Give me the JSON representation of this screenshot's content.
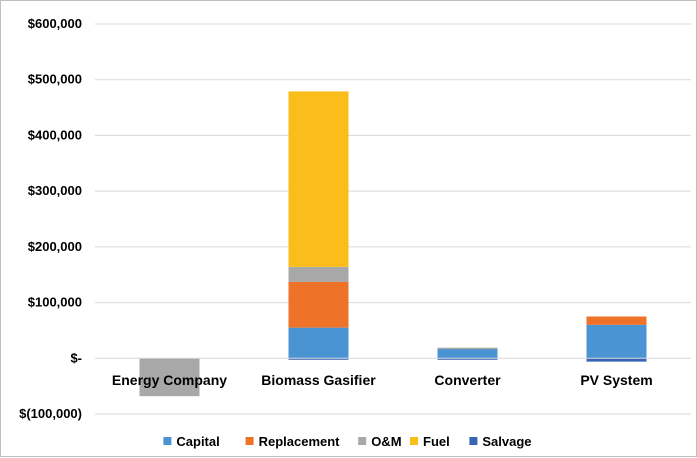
{
  "chart_data": {
    "type": "bar",
    "stacked": true,
    "categories": [
      "Energy Company",
      "Biomass Gasifier",
      "Converter",
      "PV System"
    ],
    "series": [
      {
        "name": "Capital",
        "color": "#4a94d4",
        "values": [
          0,
          55000,
          18000,
          60000
        ]
      },
      {
        "name": "Replacement",
        "color": "#ee7228",
        "values": [
          0,
          82000,
          0,
          15000
        ]
      },
      {
        "name": "O&M",
        "color": "#a8a8a8",
        "values": [
          -68000,
          27000,
          1000,
          0
        ]
      },
      {
        "name": "Fuel",
        "color": "#fbbd1a",
        "values": [
          0,
          315000,
          0,
          0
        ]
      },
      {
        "name": "Salvage",
        "color": "#3764b3",
        "values": [
          0,
          -1000,
          -1000,
          -6000
        ]
      }
    ],
    "y_ticks": [
      -100000,
      0,
      100000,
      200000,
      300000,
      400000,
      500000,
      600000
    ],
    "y_tick_labels": [
      "$(100,000)",
      "$-",
      "$100,000",
      "$200,000",
      "$300,000",
      "$400,000",
      "$500,000",
      "$600,000"
    ],
    "ylim": [
      -100000,
      600000
    ],
    "title": "",
    "xlabel": "",
    "ylabel": "",
    "grid": true,
    "legend_position": "bottom"
  }
}
